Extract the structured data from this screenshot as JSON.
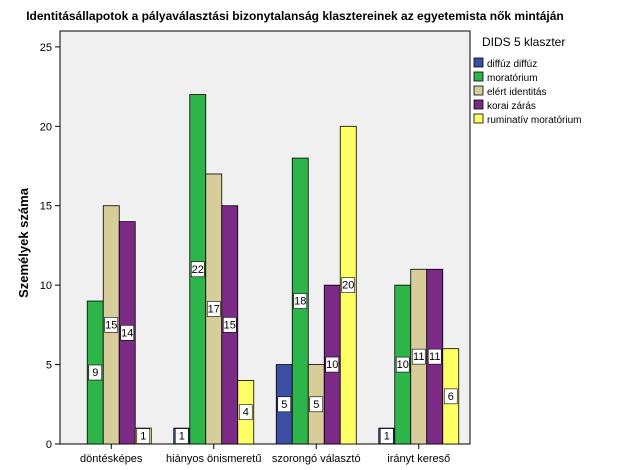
{
  "chart_data": {
    "type": "bar",
    "title": "Identitásállapotok a pályaválasztási bizonytalanság klasztereinek az egyetemista nők mintáján",
    "ylabel": "Személyek száma",
    "xlabel": "",
    "ylim": [
      0,
      26
    ],
    "yticks": [
      0,
      5,
      10,
      15,
      20,
      25
    ],
    "categories": [
      "döntésképes",
      "hiányos önismeretű",
      "szorongó választó",
      "irányt kereső"
    ],
    "legend_title": "DIDS 5 klaszter",
    "legend_position": "right",
    "series": [
      {
        "name": "diffúz diffúz",
        "color": "#3d4fa3",
        "values": [
          0,
          1,
          5,
          1
        ]
      },
      {
        "name": "moratórium",
        "color": "#2eb54a",
        "values": [
          9,
          22,
          18,
          10
        ]
      },
      {
        "name": "elért identitás",
        "color": "#d6cd9a",
        "values": [
          15,
          17,
          5,
          11
        ]
      },
      {
        "name": "korai zárás",
        "color": "#7b2a86",
        "values": [
          14,
          15,
          10,
          11
        ]
      },
      {
        "name": "ruminatív moratórium",
        "color": "#ffff66",
        "values": [
          1,
          4,
          20,
          6
        ]
      }
    ],
    "plot_background": "#f0f0f0",
    "grid": false
  }
}
